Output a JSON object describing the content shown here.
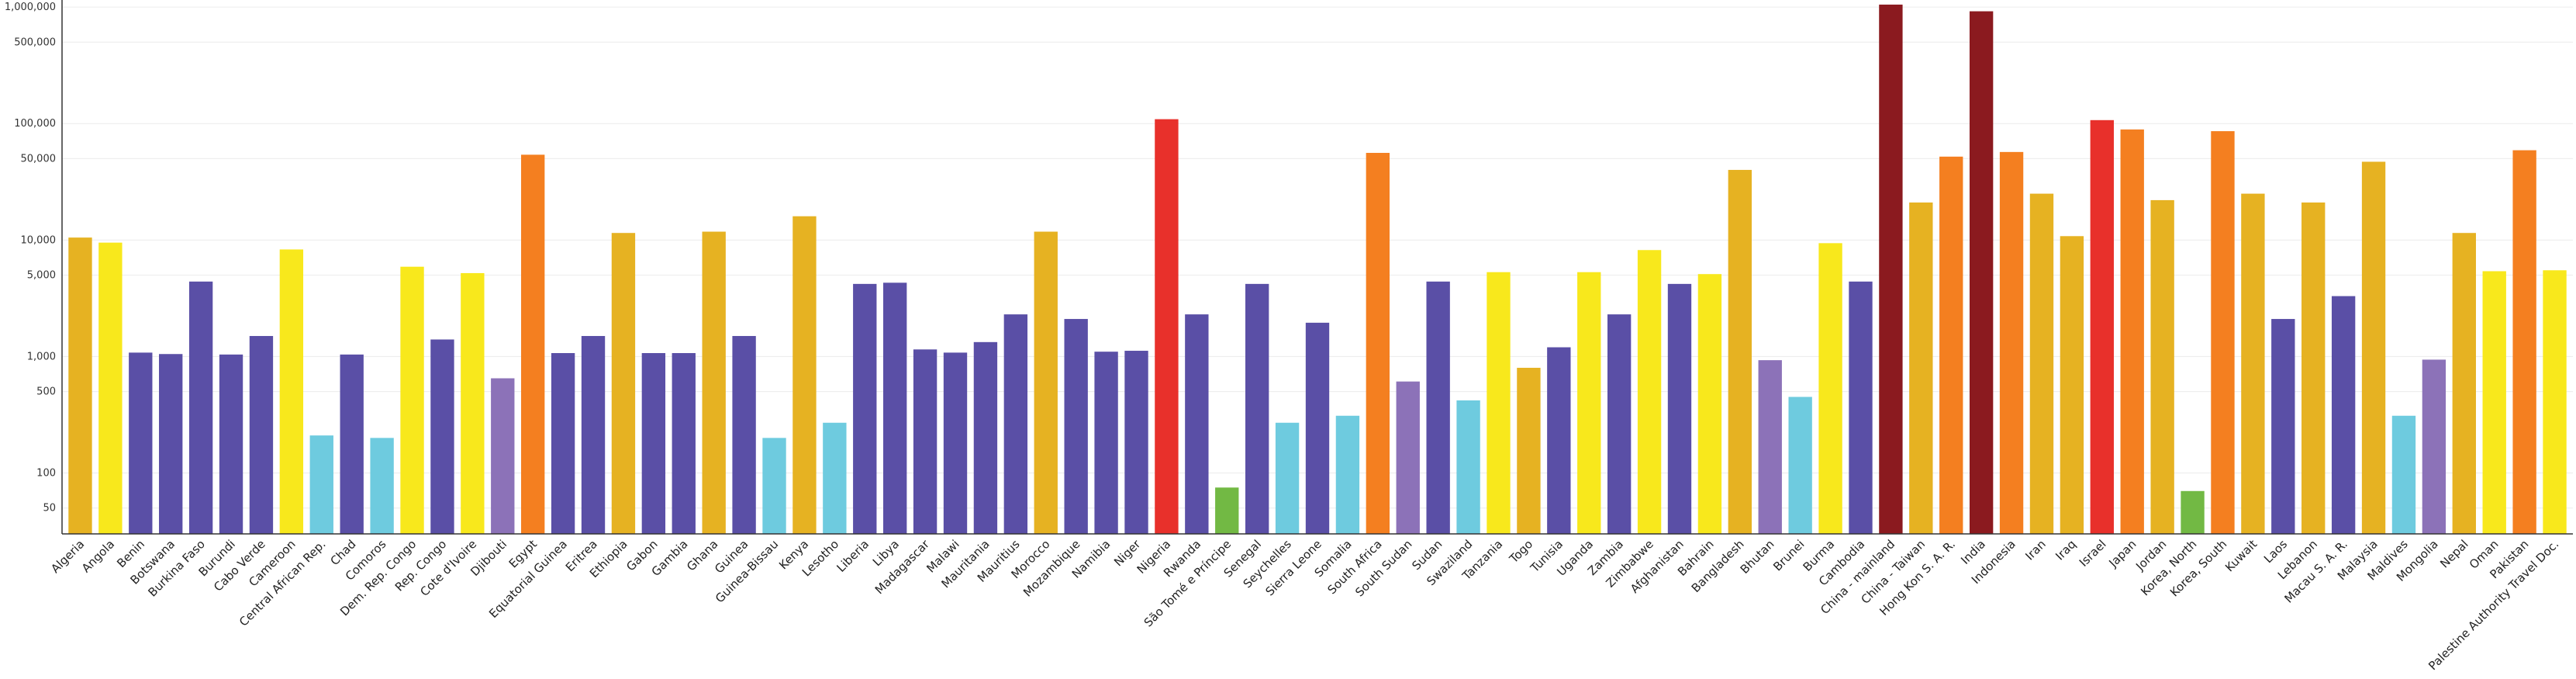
{
  "chart_data": {
    "type": "bar",
    "title": "",
    "xlabel": "",
    "ylabel": "",
    "scale": "log",
    "ylim": [
      30,
      1150000
    ],
    "grid": true,
    "legend": "none",
    "yticks": [
      {
        "v": 50,
        "label": "50"
      },
      {
        "v": 100,
        "label": "100"
      },
      {
        "v": 500,
        "label": "500"
      },
      {
        "v": 1000,
        "label": "1,000"
      },
      {
        "v": 5000,
        "label": "5,000"
      },
      {
        "v": 10000,
        "label": "10,000"
      },
      {
        "v": 50000,
        "label": "50,000"
      },
      {
        "v": 100000,
        "label": "100,000"
      },
      {
        "v": 500000,
        "label": "500,000"
      },
      {
        "v": 1000000,
        "label": "1,000,000"
      }
    ],
    "palette": {
      "darkred": "#8b1a1f",
      "red": "#e8302b",
      "orange": "#f47f20",
      "gold": "#e6b222",
      "yellow": "#f8e81c",
      "indigo": "#5a4fa6",
      "lavender": "#8c72b8",
      "cyan": "#6ecbdf",
      "green": "#72b944"
    },
    "categories": [
      "Algeria",
      "Angola",
      "Benin",
      "Botswana",
      "Burkina Faso",
      "Burundi",
      "Cabo Verde",
      "Cameroon",
      "Central African Rep.",
      "Chad",
      "Comoros",
      "Dem. Rep. Congo",
      "Rep. Congo",
      "Cote d'Ivoire",
      "Djibouti",
      "Egypt",
      "Equatorial Guinea",
      "Eritrea",
      "Ethiopia",
      "Gabon",
      "Gambia",
      "Ghana",
      "Guinea",
      "Guinea-Bissau",
      "Kenya",
      "Lesotho",
      "Liberia",
      "Libya",
      "Madagascar",
      "Malawi",
      "Mauritania",
      "Mauritius",
      "Morocco",
      "Mozambique",
      "Namibia",
      "Niger",
      "Nigeria",
      "Rwanda",
      "São Tomé e Príncipe",
      "Senegal",
      "Seychelles",
      "Sierra Leone",
      "Somalia",
      "South Africa",
      "South Sudan",
      "Sudan",
      "Swaziland",
      "Tanzania",
      "Togo",
      "Tunisia",
      "Uganda",
      "Zambia",
      "Zimbabwe",
      "Afghanistan",
      "Bahrain",
      "Bangladesh",
      "Bhutan",
      "Brunei",
      "Burma",
      "Cambodia",
      "China - mainland",
      "China - Taiwan",
      "Hong Kon S. A. R.",
      "India",
      "Indonesia",
      "Iran",
      "Iraq",
      "Israel",
      "Japan",
      "Jordan",
      "Korea, North",
      "Korea, South",
      "Kuwait",
      "Laos",
      "Lebanon",
      "Macau S. A. R.",
      "Malaysia",
      "Maldives",
      "Mongolia",
      "Nepal",
      "Oman",
      "Pakistan",
      "Palestine Authority Travel Doc."
    ],
    "values": [
      10500,
      9500,
      1080,
      1050,
      4400,
      1040,
      1500,
      8300,
      210,
      1040,
      200,
      5900,
      1400,
      5200,
      650,
      54000,
      1070,
      1500,
      11500,
      1070,
      1070,
      11800,
      1500,
      200,
      16000,
      270,
      4200,
      4300,
      1150,
      1080,
      1330,
      2300,
      11800,
      2100,
      1100,
      1120,
      109000,
      2300,
      75,
      4200,
      270,
      1950,
      310,
      56000,
      610,
      4400,
      420,
      5300,
      800,
      1200,
      5300,
      2300,
      8200,
      4200,
      5100,
      40000,
      930,
      450,
      9400,
      4400,
      1050000,
      21000,
      52000,
      920000,
      57000,
      25000,
      10800,
      107000,
      89000,
      22000,
      70,
      86000,
      25000,
      2100,
      21000,
      3300,
      47000,
      310,
      940,
      11500,
      5400,
      59000,
      5500
    ],
    "color_keys": [
      "gold",
      "yellow",
      "indigo",
      "indigo",
      "indigo",
      "indigo",
      "indigo",
      "yellow",
      "cyan",
      "indigo",
      "cyan",
      "yellow",
      "indigo",
      "yellow",
      "lavender",
      "orange",
      "indigo",
      "indigo",
      "gold",
      "indigo",
      "indigo",
      "gold",
      "indigo",
      "cyan",
      "gold",
      "cyan",
      "indigo",
      "indigo",
      "indigo",
      "indigo",
      "indigo",
      "indigo",
      "gold",
      "indigo",
      "indigo",
      "indigo",
      "red",
      "indigo",
      "green",
      "indigo",
      "cyan",
      "indigo",
      "cyan",
      "orange",
      "lavender",
      "indigo",
      "cyan",
      "yellow",
      "gold",
      "indigo",
      "yellow",
      "indigo",
      "yellow",
      "indigo",
      "yellow",
      "gold",
      "lavender",
      "cyan",
      "yellow",
      "indigo",
      "darkred",
      "gold",
      "orange",
      "darkred",
      "orange",
      "gold",
      "gold",
      "red",
      "orange",
      "gold",
      "green",
      "orange",
      "gold",
      "indigo",
      "gold",
      "indigo",
      "gold",
      "cyan",
      "lavender",
      "gold",
      "yellow",
      "orange",
      "yellow"
    ]
  }
}
